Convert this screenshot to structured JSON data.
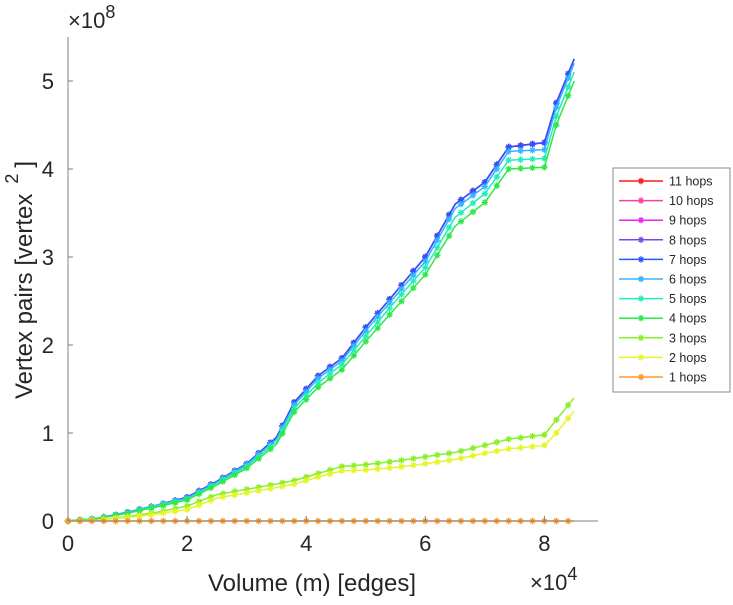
{
  "chart_data": {
    "type": "line",
    "title": "",
    "xlabel": "Volume (m) [edges]",
    "ylabel": "Vertex pairs [vertex",
    "ylabel_superscript": "2",
    "ylabel_suffix": "]",
    "x_exponent_label": "×10",
    "x_exponent": "4",
    "y_exponent_label": "×10",
    "y_exponent": "8",
    "xlim": [
      0,
      8.9
    ],
    "ylim": [
      0,
      5.5
    ],
    "xticks": [
      0,
      2,
      4,
      6,
      8
    ],
    "yticks": [
      0,
      1,
      2,
      3,
      4,
      5
    ],
    "grid": false,
    "legend_placement": "outside-right",
    "x": [
      0,
      0.5,
      1,
      1.5,
      2,
      2.5,
      3,
      3.5,
      3.8,
      4.2,
      4.6,
      5,
      5.5,
      6,
      6.5,
      7,
      7.4,
      8,
      8.2,
      8.5
    ],
    "series": [
      {
        "name": "11 hops",
        "color": "#ff1a1a",
        "values": [
          0,
          0.03,
          0.1,
          0.18,
          0.27,
          0.45,
          0.65,
          0.95,
          1.35,
          1.65,
          1.85,
          2.2,
          2.6,
          3.0,
          3.6,
          3.85,
          4.25,
          4.3,
          4.75,
          5.25
        ]
      },
      {
        "name": "10 hops",
        "color": "#ff3fa0",
        "values": [
          0,
          0.03,
          0.1,
          0.18,
          0.27,
          0.45,
          0.65,
          0.95,
          1.35,
          1.65,
          1.85,
          2.2,
          2.6,
          3.0,
          3.6,
          3.85,
          4.25,
          4.3,
          4.75,
          5.25
        ]
      },
      {
        "name": "9 hops",
        "color": "#ee22ee",
        "values": [
          0,
          0.03,
          0.1,
          0.18,
          0.27,
          0.45,
          0.65,
          0.95,
          1.35,
          1.65,
          1.85,
          2.2,
          2.6,
          3.0,
          3.6,
          3.85,
          4.25,
          4.3,
          4.75,
          5.25
        ]
      },
      {
        "name": "8 hops",
        "color": "#7a45f0",
        "values": [
          0,
          0.03,
          0.1,
          0.18,
          0.27,
          0.45,
          0.65,
          0.95,
          1.35,
          1.65,
          1.85,
          2.2,
          2.6,
          3.0,
          3.6,
          3.85,
          4.25,
          4.3,
          4.75,
          5.25
        ]
      },
      {
        "name": "7 hops",
        "color": "#2a55ff",
        "values": [
          0,
          0.03,
          0.1,
          0.18,
          0.27,
          0.45,
          0.65,
          0.95,
          1.35,
          1.65,
          1.85,
          2.2,
          2.6,
          3.0,
          3.6,
          3.85,
          4.25,
          4.3,
          4.75,
          5.25
        ]
      },
      {
        "name": "6 hops",
        "color": "#33b5ff",
        "values": [
          0,
          0.03,
          0.1,
          0.18,
          0.26,
          0.44,
          0.64,
          0.93,
          1.32,
          1.62,
          1.82,
          2.16,
          2.56,
          2.95,
          3.55,
          3.8,
          4.2,
          4.22,
          4.7,
          5.2
        ]
      },
      {
        "name": "5 hops",
        "color": "#22eebb",
        "values": [
          0,
          0.03,
          0.09,
          0.17,
          0.25,
          0.43,
          0.62,
          0.9,
          1.28,
          1.57,
          1.78,
          2.1,
          2.5,
          2.88,
          3.45,
          3.72,
          4.1,
          4.12,
          4.6,
          5.1
        ]
      },
      {
        "name": "4 hops",
        "color": "#2ee84a",
        "values": [
          0,
          0.03,
          0.09,
          0.16,
          0.24,
          0.41,
          0.6,
          0.87,
          1.24,
          1.52,
          1.72,
          2.04,
          2.42,
          2.8,
          3.35,
          3.62,
          4.0,
          4.02,
          4.5,
          5.0
        ]
      },
      {
        "name": "3 hops",
        "color": "#88f02a",
        "values": [
          0,
          0.01,
          0.05,
          0.1,
          0.17,
          0.3,
          0.36,
          0.42,
          0.46,
          0.54,
          0.62,
          0.64,
          0.68,
          0.73,
          0.78,
          0.86,
          0.93,
          0.98,
          1.15,
          1.4
        ]
      },
      {
        "name": "2 hops",
        "color": "#e6f52a",
        "values": [
          0,
          0.01,
          0.04,
          0.08,
          0.13,
          0.26,
          0.32,
          0.38,
          0.42,
          0.5,
          0.57,
          0.58,
          0.61,
          0.65,
          0.7,
          0.77,
          0.82,
          0.86,
          1.0,
          1.25
        ]
      },
      {
        "name": "1 hops",
        "color": "#ff9a2a",
        "values": [
          0,
          0,
          0,
          0,
          0,
          0,
          0,
          0,
          0,
          0,
          0,
          0,
          0,
          0,
          0,
          0,
          0,
          0,
          0,
          0
        ]
      }
    ]
  }
}
